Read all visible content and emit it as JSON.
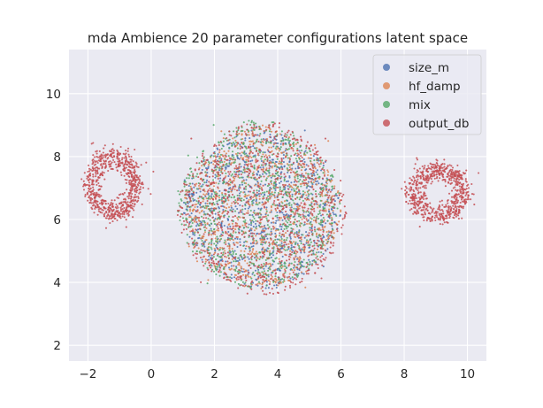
{
  "chart_data": {
    "type": "scatter",
    "title": "mda Ambience 20 parameter configurations latent space",
    "xlabel": "",
    "ylabel": "",
    "xlim": [
      -2.6,
      10.6
    ],
    "ylim": [
      1.5,
      11.4
    ],
    "x_ticks": [
      -2,
      0,
      2,
      4,
      6,
      8,
      10
    ],
    "x_tick_labels": [
      "−2",
      "0",
      "2",
      "4",
      "6",
      "8",
      "10"
    ],
    "y_ticks": [
      2,
      4,
      6,
      8,
      10
    ],
    "y_tick_labels": [
      "2",
      "4",
      "6",
      "8",
      "10"
    ],
    "grid": true,
    "background": "#eaeaf2",
    "legend_position": "top-right",
    "series": [
      {
        "name": "size_m",
        "color": "#4c72b0",
        "clusters": [
          {
            "shape": "blob",
            "center": [
              3.5,
              6.4
            ],
            "spread": [
              2.5,
              2.6
            ]
          }
        ]
      },
      {
        "name": "hf_damp",
        "color": "#dd8452",
        "clusters": [
          {
            "shape": "blob",
            "center": [
              3.5,
              6.4
            ],
            "spread": [
              2.5,
              2.6
            ]
          }
        ]
      },
      {
        "name": "mix",
        "color": "#55a868",
        "clusters": [
          {
            "shape": "blob",
            "center": [
              3.4,
              6.5
            ],
            "spread": [
              2.6,
              2.7
            ]
          }
        ]
      },
      {
        "name": "output_db",
        "color": "#c44e52",
        "clusters": [
          {
            "shape": "blob",
            "center": [
              3.5,
              6.4
            ],
            "spread": [
              2.7,
              2.8
            ]
          },
          {
            "shape": "ring",
            "center": [
              -1.2,
              7.1
            ],
            "radius": [
              0.85,
              1.1
            ]
          },
          {
            "shape": "ring",
            "center": [
              9.05,
              6.85
            ],
            "radius": [
              0.95,
              0.9
            ]
          }
        ]
      }
    ]
  }
}
